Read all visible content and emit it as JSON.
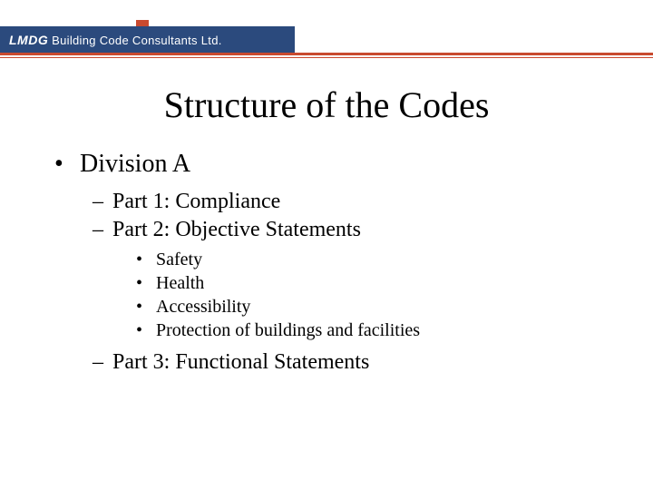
{
  "header": {
    "logo_prefix": "LMDG",
    "logo_rest": " Building Code Consultants Ltd."
  },
  "title": "Structure of the Codes",
  "content": {
    "l1": "Division A",
    "parts": {
      "p1": "Part 1: Compliance",
      "p2": "Part 2: Objective Statements",
      "p2_items": {
        "i1": "Safety",
        "i2": "Health",
        "i3": "Accessibility",
        "i4": "Protection of buildings and facilities"
      },
      "p3": "Part 3: Functional Statements"
    }
  },
  "colors": {
    "header_bg": "#2b4a7d",
    "accent": "#c94a2f",
    "text": "#000000",
    "bg": "#ffffff"
  }
}
